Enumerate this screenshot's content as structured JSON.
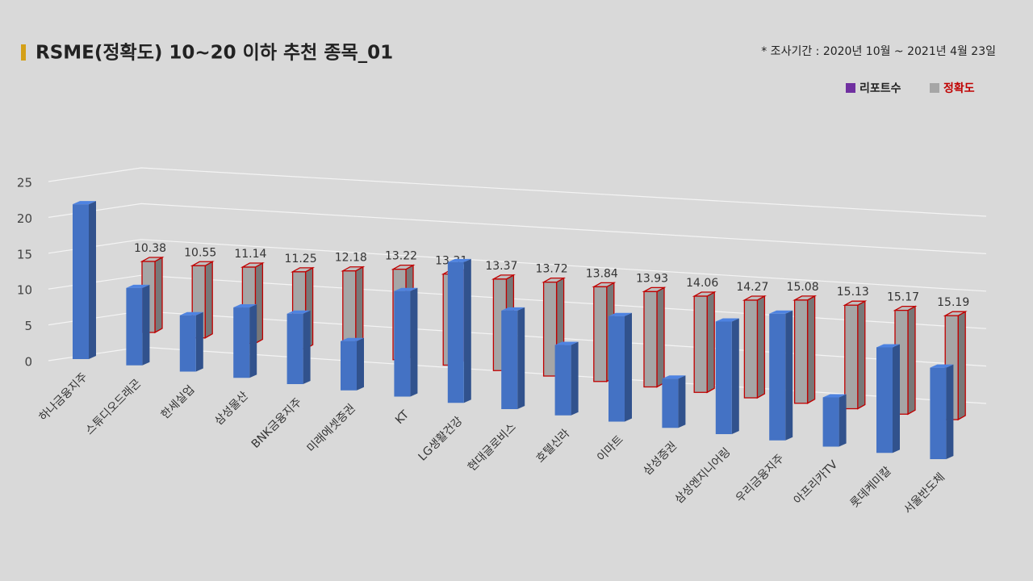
{
  "chart_data": {
    "type": "bar",
    "title": "RSME(정확도) 10~20 이하 추천 종목_01",
    "note": "* 조사기간 : 2020년 10월 ~ 2021년 4월 23일",
    "categories": [
      "하나금융지주",
      "스튜디오드래곤",
      "한세실업",
      "삼성물산",
      "BNK금융지주",
      "미래에셋증권",
      "KT",
      "LG생활건강",
      "현대글로비스",
      "호텔신라",
      "이마트",
      "삼성증권",
      "삼성엔지니어링",
      "우리금융지주",
      "아프리카TV",
      "롯데케미칼",
      "서울반도체"
    ],
    "series": [
      {
        "name": "리포트수",
        "color": "#4472c4",
        "legend_color": "#7030a0",
        "values": [
          22,
          11,
          8,
          10,
          10,
          7,
          15,
          20,
          14,
          10,
          15,
          7,
          16,
          18,
          7,
          15,
          13
        ]
      },
      {
        "name": "정확도",
        "color": "#a6a6a6",
        "edge_color": "#c00000",
        "legend_text_color": "#c00000",
        "values": [
          10.38,
          10.55,
          11.14,
          11.25,
          12.18,
          13.22,
          13.31,
          13.37,
          13.72,
          13.84,
          13.93,
          14.06,
          14.27,
          15.08,
          15.13,
          15.17,
          15.19
        ]
      }
    ],
    "ylim": [
      0,
      25
    ],
    "yticks": [
      0,
      5,
      10,
      15,
      20,
      25
    ],
    "grid": true
  }
}
